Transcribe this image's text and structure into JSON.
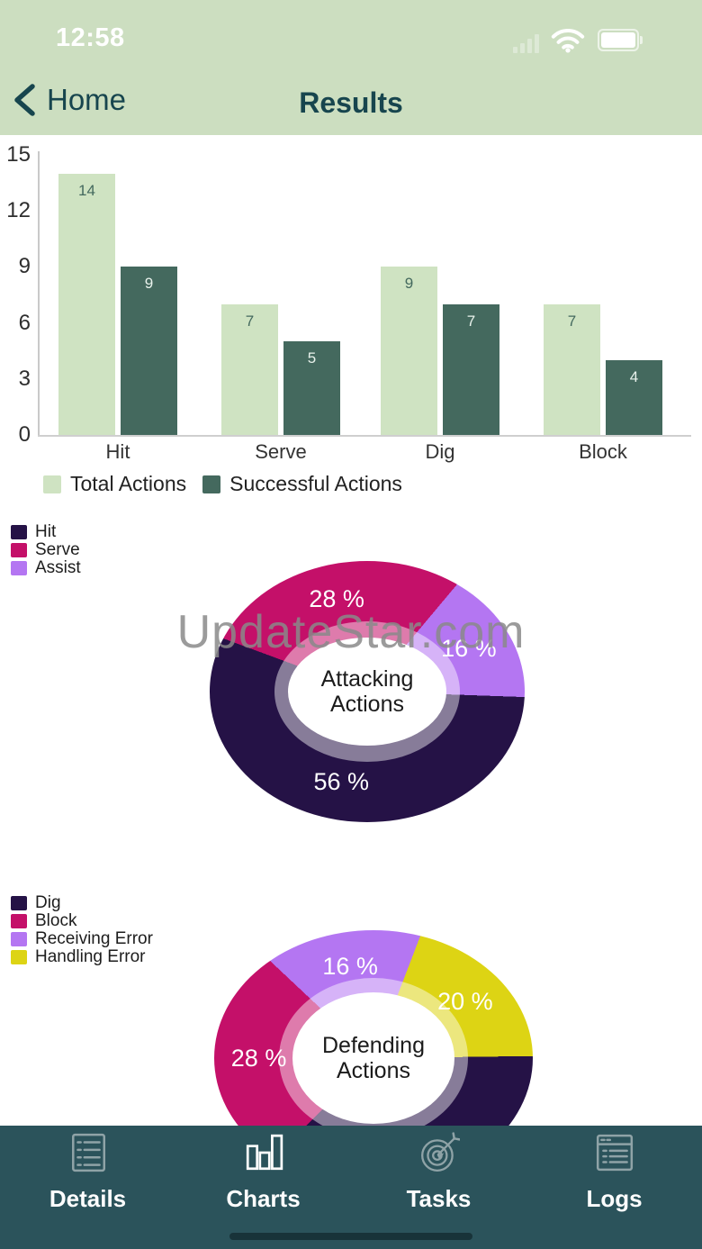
{
  "status_bar": {
    "time": "12:58",
    "icons": [
      "cellular-icon",
      "wifi-icon",
      "battery-icon"
    ]
  },
  "nav": {
    "back_label": "Home",
    "title": "Results"
  },
  "watermark": "UpdateStar.com",
  "colors": {
    "header_bg": "#ccdec0",
    "nav_text": "#17454e",
    "tab_bar_bg": "#2b535b",
    "total_actions": "#cfe3c2",
    "successful_actions": "#44695e",
    "hit": "#251246",
    "serve": "#c41069",
    "assist": "#b476f2",
    "dig": "#251246",
    "block": "#c41069",
    "receiving_error": "#b476f2",
    "handling_error": "#ddd414"
  },
  "chart_data": [
    {
      "type": "bar",
      "title": "",
      "categories": [
        "Hit",
        "Serve",
        "Dig",
        "Block"
      ],
      "series": [
        {
          "name": "Total Actions",
          "color": "#cfe3c2",
          "values": [
            14,
            7,
            9,
            7
          ]
        },
        {
          "name": "Successful Actions",
          "color": "#44695e",
          "values": [
            9,
            5,
            7,
            4
          ]
        }
      ],
      "ylim": [
        0,
        15
      ],
      "yticks": [
        0,
        3,
        6,
        9,
        12,
        15
      ],
      "grid": false,
      "legend_position": "bottom"
    },
    {
      "type": "pie",
      "title": "Attacking Actions",
      "labels": [
        "Hit",
        "Serve",
        "Assist"
      ],
      "values": [
        56,
        28,
        16
      ],
      "colors": [
        "#251246",
        "#c41069",
        "#b476f2"
      ],
      "slice_labels": [
        "56 %",
        "28 %",
        "16 %"
      ],
      "legend_position": "top-left"
    },
    {
      "type": "pie",
      "title": "Defending Actions",
      "labels": [
        "Dig",
        "Block",
        "Receiving Error",
        "Handling Error"
      ],
      "values": [
        36,
        28,
        16,
        20
      ],
      "colors": [
        "#251246",
        "#c41069",
        "#b476f2",
        "#ddd414"
      ],
      "slice_labels": [
        "",
        "28 %",
        "16 %",
        "20 %"
      ],
      "legend_position": "top-left"
    }
  ],
  "tab_bar": {
    "items": [
      {
        "label": "Details",
        "icon": "details-icon",
        "active": false
      },
      {
        "label": "Charts",
        "icon": "charts-icon",
        "active": true
      },
      {
        "label": "Tasks",
        "icon": "tasks-icon",
        "active": false
      },
      {
        "label": "Logs",
        "icon": "logs-icon",
        "active": false
      }
    ]
  }
}
